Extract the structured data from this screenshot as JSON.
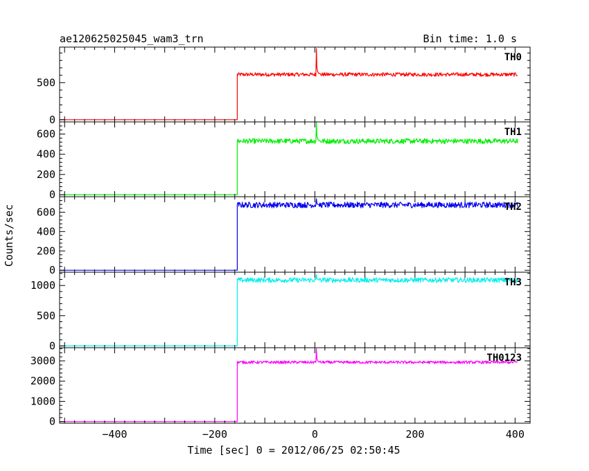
{
  "header": {
    "left_title": "ae120625025045_wam3_trn",
    "right_title": "Bin time: 1.0 s"
  },
  "axes": {
    "xlabel": "Time [sec] 0 = 2012/06/25 02:50:45",
    "ylabel": "Counts/sec"
  },
  "chart_data": [
    {
      "type": "line",
      "name": "TH0",
      "color": "#ff0000",
      "xlim": [
        -510,
        430
      ],
      "ylim": [
        -30,
        980
      ],
      "yticks": [
        0,
        500
      ],
      "xticks": [
        -400,
        -200,
        0,
        200,
        400
      ],
      "x_range": [
        -510,
        405
      ],
      "step_time": -155,
      "pre_level": 0,
      "post_level": 610,
      "noise_amplitude": 25,
      "spike": {
        "x": 3,
        "y": 960
      }
    },
    {
      "type": "line",
      "name": "TH1",
      "color": "#00ee00",
      "xlim": [
        -510,
        430
      ],
      "ylim": [
        -20,
        720
      ],
      "yticks": [
        0,
        200,
        400,
        600
      ],
      "xticks": [
        -400,
        -200,
        0,
        200,
        400
      ],
      "x_range": [
        -510,
        405
      ],
      "step_time": -155,
      "pre_level": 0,
      "post_level": 530,
      "noise_amplitude": 25,
      "spike": {
        "x": 3,
        "y": 720
      }
    },
    {
      "type": "line",
      "name": "TH2",
      "color": "#0000ee",
      "xlim": [
        -510,
        430
      ],
      "ylim": [
        -20,
        760
      ],
      "yticks": [
        0,
        200,
        400,
        600
      ],
      "xticks": [
        -400,
        -200,
        0,
        200,
        400
      ],
      "x_range": [
        -510,
        405
      ],
      "step_time": -155,
      "pre_level": 0,
      "post_level": 675,
      "noise_amplitude": 30,
      "spike": {
        "x": 3,
        "y": 740
      }
    },
    {
      "type": "line",
      "name": "TH3",
      "color": "#00eeee",
      "xlim": [
        -510,
        430
      ],
      "ylim": [
        -30,
        1220
      ],
      "yticks": [
        0,
        500,
        1000
      ],
      "xticks": [
        -400,
        -200,
        0,
        200,
        400
      ],
      "x_range": [
        -510,
        405
      ],
      "step_time": -155,
      "pre_level": 0,
      "post_level": 1090,
      "noise_amplitude": 40,
      "spike": {
        "x": 3,
        "y": 1180
      }
    },
    {
      "type": "line",
      "name": "TH0123",
      "color": "#ff00ff",
      "xlim": [
        -510,
        430
      ],
      "ylim": [
        -80,
        3650
      ],
      "yticks": [
        0,
        1000,
        2000,
        3000
      ],
      "xticks": [
        -400,
        -200,
        0,
        200,
        400
      ],
      "x_range": [
        -510,
        405
      ],
      "step_time": -155,
      "pre_level": 0,
      "post_level": 2930,
      "noise_amplitude": 70,
      "spike": {
        "x": 3,
        "y": 3600
      }
    }
  ]
}
